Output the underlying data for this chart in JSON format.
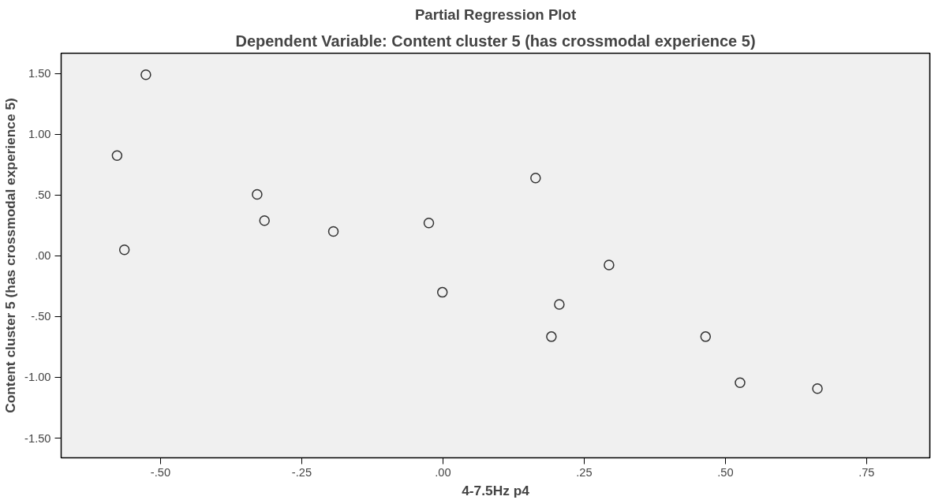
{
  "chart_data": {
    "type": "scatter",
    "title": "Partial Regression Plot",
    "subtitle": "Dependent Variable: Content cluster 5 (has crossmodal experience 5)",
    "xlabel": "4-7.5Hz p4",
    "ylabel": "Content cluster 5 (has crossmodal experience 5)",
    "x": [
      -0.526,
      -0.577,
      -0.564,
      -0.329,
      -0.316,
      -0.194,
      -0.025,
      -0.001,
      0.164,
      0.294,
      0.206,
      0.192,
      0.465,
      0.526,
      0.663
    ],
    "values": [
      1.49,
      0.825,
      0.05,
      0.505,
      0.29,
      0.2,
      0.27,
      -0.3,
      0.64,
      -0.075,
      -0.4,
      -0.665,
      -0.665,
      -1.044,
      -1.093
    ],
    "color": "#333333",
    "marker": "circle",
    "grid": false,
    "xlim": [
      -0.676,
      0.862
    ],
    "ylim": [
      -1.662,
      1.667
    ],
    "xticks": [
      {
        "value": -0.5,
        "label": "-.50"
      },
      {
        "value": -0.25,
        "label": "-.25"
      },
      {
        "value": 0,
        "label": ".00"
      },
      {
        "value": 0.25,
        "label": ".25"
      },
      {
        "value": 0.5,
        "label": ".50"
      },
      {
        "value": 0.75,
        "label": ".75"
      }
    ],
    "yticks": [
      {
        "value": -1.5,
        "label": "-1.50"
      },
      {
        "value": -1.0,
        "label": "-1.00"
      },
      {
        "value": -0.5,
        "label": "-.50"
      },
      {
        "value": 0,
        "label": ".00"
      },
      {
        "value": 0.5,
        "label": ".50"
      },
      {
        "value": 1.0,
        "label": "1.00"
      },
      {
        "value": 1.5,
        "label": "1.50"
      }
    ]
  }
}
